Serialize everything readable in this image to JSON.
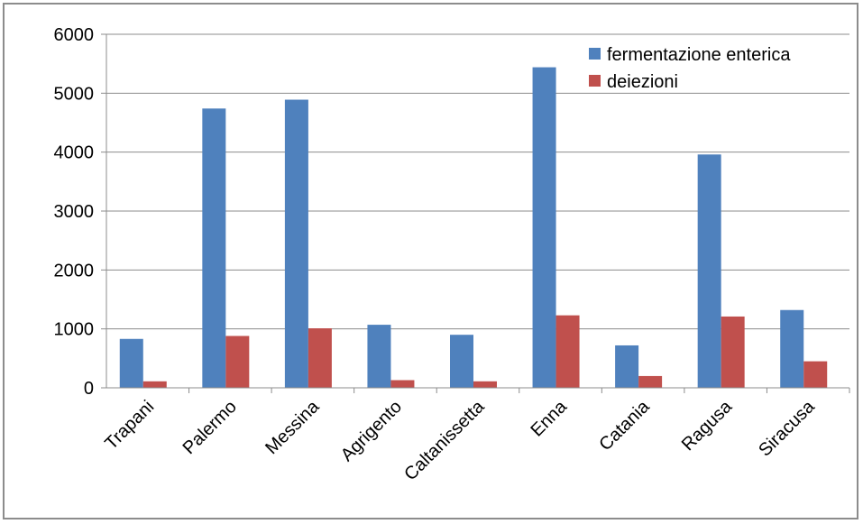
{
  "chart_data": {
    "type": "bar",
    "title": "",
    "xlabel": "",
    "ylabel": "",
    "categories": [
      "Trapani",
      "Palermo",
      "Messina",
      "Agrigento",
      "Caltanissetta",
      "Enna",
      "Catania",
      "Ragusa",
      "Siracusa"
    ],
    "series": [
      {
        "name": "fermentazione enterica",
        "color": "#4f81bd",
        "values": [
          830,
          4740,
          4890,
          1070,
          900,
          5440,
          720,
          3960,
          1320
        ]
      },
      {
        "name": "deiezioni",
        "color": "#c0504d",
        "values": [
          110,
          880,
          1010,
          130,
          110,
          1230,
          200,
          1210,
          450
        ]
      }
    ],
    "ylim": [
      0,
      6000
    ],
    "yticks": [
      0,
      1000,
      2000,
      3000,
      4000,
      5000,
      6000
    ],
    "grid": "horizontal",
    "legend_position": "top-right"
  }
}
